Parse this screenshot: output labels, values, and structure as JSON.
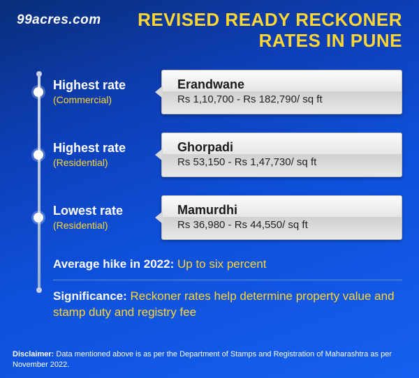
{
  "brand": "99acres.com",
  "title_line1": "REVISED READY RECKONER",
  "title_line2": "RATES IN PUNE",
  "colors": {
    "bg_grad_start": "#0a2e7a",
    "bg_grad_end": "#1560f0",
    "accent": "#ffd733",
    "text_light": "#ffffff",
    "card_text": "#1a1a1a"
  },
  "items": [
    {
      "label_title": "Highest rate",
      "label_sub": "(Commercial)",
      "location": "Erandwane",
      "rate": "Rs 1,10,700 - Rs 182,790/ sq ft"
    },
    {
      "label_title": "Highest rate",
      "label_sub": "(Residential)",
      "location": "Ghorpadi",
      "rate": "Rs 53,150 - Rs 1,47,730/ sq ft"
    },
    {
      "label_title": "Lowest rate",
      "label_sub": "(Residential)",
      "location": "Mamurdhi",
      "rate": "Rs 36,980 - Rs 44,550/ sq ft"
    }
  ],
  "avg_hike_label": "Average hike in 2022",
  "avg_hike_value": "Up to six percent",
  "significance_label": "Significance",
  "significance_value": "Reckoner rates help determine property value and stamp duty and registry fee",
  "disclaimer_label": "Disclaimer:",
  "disclaimer_text": "Data mentioned above is as per the Department of Stamps and Registration of Maharashtra as per November 2022."
}
